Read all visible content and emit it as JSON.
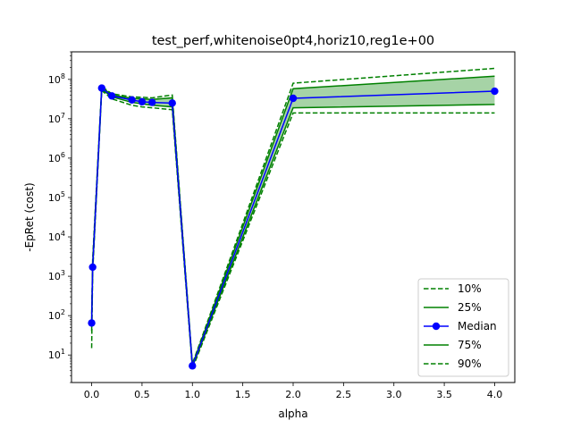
{
  "chart_data": {
    "type": "line",
    "title": "test_perf,whitenoise0pt4,horiz10,reg1e+00",
    "xlabel": "alpha",
    "ylabel": "-EpRet (cost)",
    "yscale": "log",
    "xlim": [
      -0.2,
      4.2
    ],
    "ylim": [
      2,
      500000000
    ],
    "x_ticks": [
      0.0,
      0.5,
      1.0,
      1.5,
      2.0,
      2.5,
      3.0,
      3.5,
      4.0
    ],
    "x_tick_labels": [
      "0.0",
      "0.5",
      "1.0",
      "1.5",
      "2.0",
      "2.5",
      "3.0",
      "3.5",
      "4.0"
    ],
    "y_ticks": [
      10,
      100,
      1000,
      10000,
      100000,
      1000000,
      10000000,
      100000000
    ],
    "y_tick_labels": [
      "10^1",
      "10^2",
      "10^3",
      "10^4",
      "10^5",
      "10^6",
      "10^7",
      "10^8"
    ],
    "x": [
      0.0,
      0.01,
      0.1,
      0.2,
      0.4,
      0.5,
      0.6,
      0.8,
      1.0,
      2.0,
      4.0
    ],
    "series": [
      {
        "name": "10%",
        "style": "dashed",
        "color": "#008000",
        "values": [
          15,
          1200,
          52000000,
          32000000,
          22000000,
          20000000,
          19000000,
          17000000,
          4.5,
          14000000,
          14000000
        ]
      },
      {
        "name": "25%",
        "style": "solid",
        "color": "#008000",
        "values": [
          40,
          1500,
          56000000,
          36000000,
          26000000,
          24000000,
          22000000,
          20000000,
          5.0,
          19000000,
          23000000
        ]
      },
      {
        "name": "Median",
        "style": "solid-marker",
        "color": "#0000ff",
        "values": [
          65,
          1700,
          60000000,
          38000000,
          30000000,
          27000000,
          26000000,
          25000000,
          5.3,
          33000000,
          50000000
        ]
      },
      {
        "name": "75%",
        "style": "solid",
        "color": "#008000",
        "values": [
          80,
          2100,
          63000000,
          40000000,
          33000000,
          32000000,
          31000000,
          34000000,
          5.6,
          58000000,
          120000000
        ]
      },
      {
        "name": "90%",
        "style": "dashed",
        "color": "#008000",
        "values": [
          110,
          2700,
          66000000,
          43000000,
          36000000,
          35000000,
          34000000,
          40000000,
          6.0,
          80000000,
          190000000
        ]
      }
    ],
    "band": {
      "lower": "25%",
      "upper": "75%",
      "color": "#008000",
      "opacity": 0.35
    },
    "legend_position": "lower-right",
    "grid": false
  }
}
